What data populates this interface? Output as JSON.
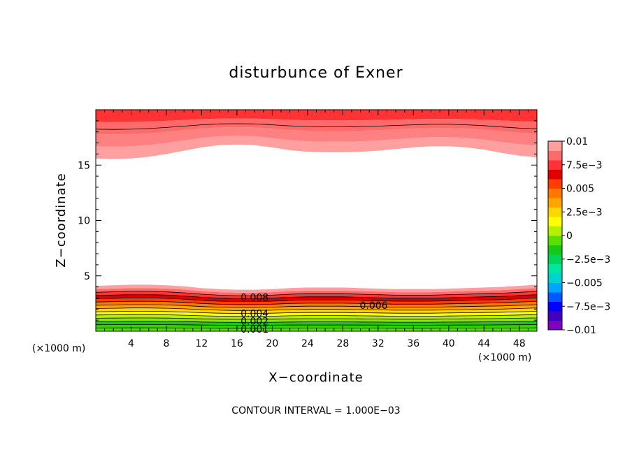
{
  "chart_data": {
    "type": "heatmap",
    "title": "disturbunce of Exner",
    "xlabel": "X−coordinate",
    "ylabel": "Z−coordinate",
    "x_unit": "(×1000 m)",
    "y_unit": "(×1000 m)",
    "xlim": [
      0,
      50
    ],
    "ylim": [
      0,
      20
    ],
    "x_ticks": [
      4,
      8,
      12,
      16,
      20,
      24,
      28,
      32,
      36,
      40,
      44,
      48
    ],
    "y_ticks": [
      5,
      10,
      15
    ],
    "contour_interval_text": "CONTOUR INTERVAL = 1.000E−03",
    "contour_labels": [
      "0.008",
      "0.006",
      "0.004",
      "0.002",
      "0.001"
    ],
    "colorbar": {
      "min": -0.01,
      "max": 0.01,
      "tick_labels": [
        "0.01",
        "7.5e−3",
        "0.005",
        "2.5e−3",
        "0",
        "−2.5e−3",
        "−0.005",
        "−7.5e−3",
        "−0.01"
      ],
      "colors": [
        "#7f00bf",
        "#3f00bf",
        "#0000ff",
        "#0059ff",
        "#00a5ff",
        "#00d2cc",
        "#00e5a0",
        "#00d55a",
        "#17c817",
        "#5ae000",
        "#b6ef00",
        "#ffff00",
        "#ffd700",
        "#ffa500",
        "#ff7700",
        "#ff3d00",
        "#e00000",
        "#ff3333",
        "#ff6a6a",
        "#ff9f9f"
      ]
    },
    "profile": {
      "x": [
        0,
        2,
        4,
        6,
        8,
        10,
        12,
        14,
        16,
        18,
        20,
        22,
        24,
        26,
        28,
        30,
        32,
        34,
        36,
        38,
        40,
        42,
        44,
        46,
        48,
        50
      ],
      "lower_boundary_height": [
        4.1,
        4.15,
        4.2,
        4.2,
        4.15,
        4.05,
        3.9,
        3.8,
        3.75,
        3.75,
        3.8,
        3.9,
        3.95,
        3.95,
        3.95,
        3.9,
        3.85,
        3.8,
        3.8,
        3.8,
        3.85,
        3.9,
        3.95,
        4.0,
        4.1,
        4.2
      ],
      "upper_boundary_height": [
        15.6,
        15.55,
        15.6,
        15.75,
        16.0,
        16.3,
        16.6,
        16.8,
        16.85,
        16.8,
        16.6,
        16.35,
        16.2,
        16.15,
        16.15,
        16.2,
        16.3,
        16.45,
        16.6,
        16.7,
        16.7,
        16.6,
        16.4,
        16.1,
        15.85,
        15.7
      ]
    }
  }
}
